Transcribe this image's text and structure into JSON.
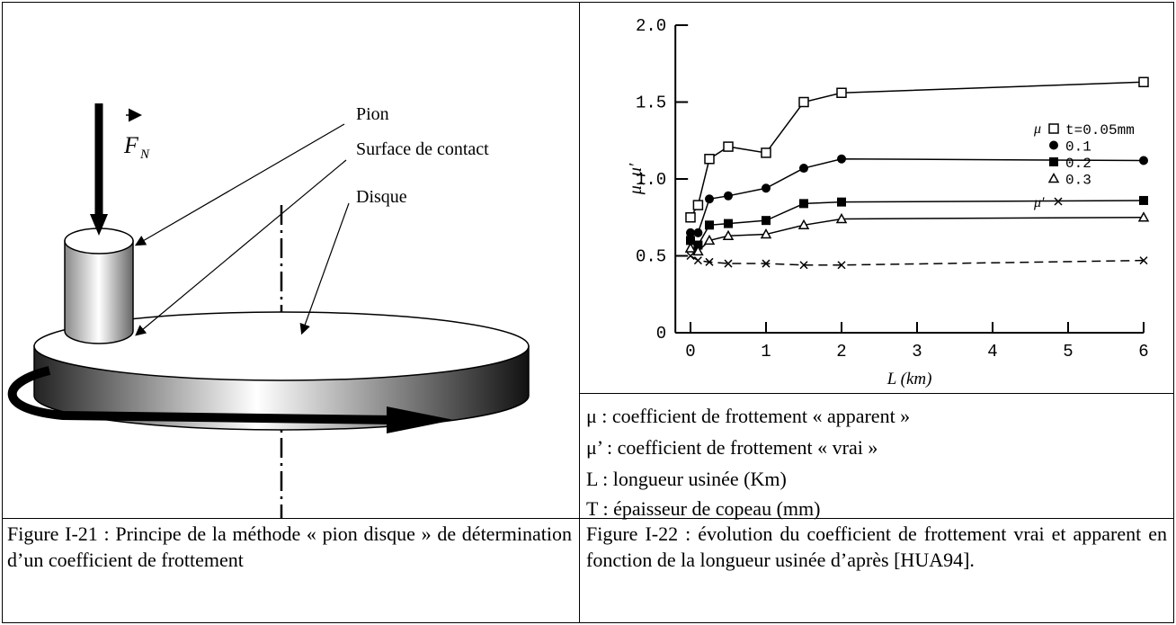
{
  "figure_21": {
    "labels": [
      "Pion",
      "Surface de contact",
      "Disque"
    ],
    "force_label": {
      "symbol": "F",
      "subscript": "N"
    },
    "caption": "Figure I-21 : Principe de la méthode « pion disque » de détermination d’un coefficient de frottement"
  },
  "figure_22": {
    "chart_data": {
      "type": "line",
      "ylabel": "μ, μ′",
      "xlabel": "L (km)",
      "legend_title": "μ",
      "x": [
        0,
        0.1,
        0.25,
        0.5,
        1,
        1.5,
        2,
        6
      ],
      "series": [
        {
          "name": "t=0.05mm",
          "color": "#000000",
          "marker": "square-open",
          "values": [
            0.75,
            0.83,
            1.13,
            1.21,
            1.17,
            1.5,
            1.56,
            1.63
          ]
        },
        {
          "name": "0.1",
          "color": "#000000",
          "marker": "circle-filled",
          "values": [
            0.65,
            0.65,
            0.87,
            0.89,
            0.94,
            1.07,
            1.13,
            1.12
          ]
        },
        {
          "name": "0.2",
          "color": "#000000",
          "marker": "square-filled",
          "values": [
            0.6,
            0.57,
            0.7,
            0.71,
            0.73,
            0.84,
            0.85,
            0.86
          ]
        },
        {
          "name": "0.3",
          "color": "#000000",
          "marker": "triangle-open",
          "values": [
            0.55,
            0.53,
            0.6,
            0.63,
            0.64,
            0.7,
            0.74,
            0.75
          ]
        },
        {
          "name": "μ′",
          "color": "#000000",
          "marker": "cross",
          "dashed": true,
          "values": [
            0.5,
            0.47,
            0.46,
            0.45,
            0.45,
            0.44,
            0.44,
            0.47
          ]
        }
      ],
      "xlim": [
        -0.2,
        6
      ],
      "xticks": [
        0,
        1,
        2,
        3,
        4,
        5,
        6
      ],
      "ylim": [
        0,
        2
      ],
      "yticks": [
        0,
        0.5,
        {
          "value": 1,
          "label": "1.0"
        },
        1.5,
        {
          "value": 2,
          "label": "2.0"
        }
      ]
    },
    "legend": [
      "μ : coefficient de frottement « apparent »",
      "μ’ : coefficient de frottement « vrai »",
      "L : longueur usinée (Km)",
      "T : épaisseur de copeau (mm)"
    ],
    "caption": "Figure I-22 : évolution du coefficient de frottement vrai et apparent en fonction de la longueur usinée d’après [HUA94]."
  }
}
